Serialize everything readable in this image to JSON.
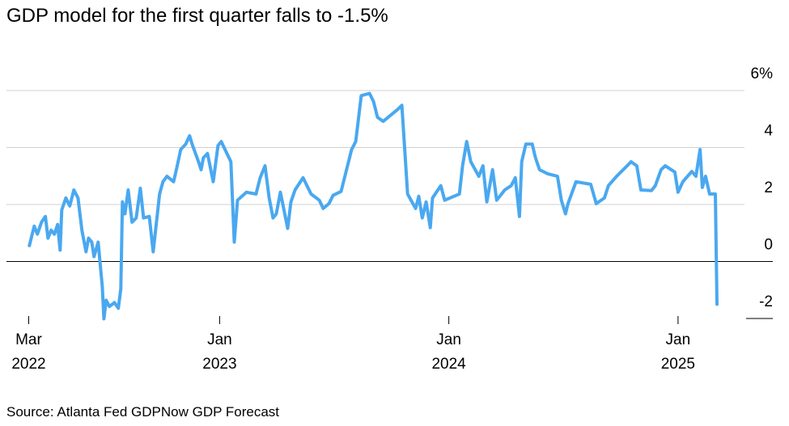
{
  "chart_data": {
    "type": "line",
    "title": "GDP model for the first quarter falls to -1.5%",
    "source": "Source: Atlanta Fed GDPNow GDP Forecast",
    "x": [
      2022.17,
      2022.191,
      2022.205,
      2022.223,
      2022.24,
      2022.251,
      2022.265,
      2022.279,
      2022.293,
      2022.304,
      2022.311,
      2022.329,
      2022.346,
      2022.364,
      2022.382,
      2022.399,
      2022.417,
      2022.428,
      2022.442,
      2022.452,
      2022.47,
      2022.488,
      2022.495,
      2022.505,
      2022.519,
      2022.541,
      2022.558,
      2022.569,
      2022.576,
      2022.587,
      2022.601,
      2022.618,
      2022.636,
      2022.654,
      2022.668,
      2022.693,
      2022.71,
      2022.738,
      2022.753,
      2022.77,
      2022.799,
      2022.813,
      2022.83,
      2022.852,
      2022.869,
      2022.88,
      2022.908,
      2022.919,
      2022.929,
      2022.947,
      2022.972,
      2022.993,
      2023.007,
      2023.049,
      2023.064,
      2023.078,
      2023.117,
      2023.159,
      2023.177,
      2023.198,
      2023.216,
      2023.233,
      2023.247,
      2023.265,
      2023.297,
      2023.311,
      2023.329,
      2023.364,
      2023.399,
      2023.435,
      2023.452,
      2023.477,
      2023.495,
      2023.53,
      2023.576,
      2023.594,
      2023.618,
      2023.654,
      2023.671,
      2023.689,
      2023.714,
      2023.777,
      2023.795,
      2023.82,
      2023.855,
      2023.869,
      2023.884,
      2023.901,
      2023.919,
      2023.929,
      2023.965,
      2023.982,
      2024.046,
      2024.06,
      2024.078,
      2024.096,
      2024.131,
      2024.149,
      2024.166,
      2024.191,
      2024.209,
      2024.244,
      2024.272,
      2024.29,
      2024.308,
      2024.318,
      2024.336,
      2024.364,
      2024.378,
      2024.396,
      2024.431,
      2024.474,
      2024.491,
      2024.509,
      2024.52,
      2024.555,
      2024.619,
      2024.643,
      2024.679,
      2024.696,
      2024.732,
      2024.778,
      2024.795,
      2024.82,
      2024.838,
      2024.884,
      2024.901,
      2024.926,
      2024.944,
      2024.986,
      2025.0,
      2025.021,
      2025.06,
      2025.078,
      2025.096,
      2025.106,
      2025.12,
      2025.138,
      2025.163,
      2025.17
    ],
    "series": [
      {
        "name": "GDPNow",
        "color": "#4aa8f0",
        "values": [
          0.56,
          1.24,
          0.96,
          1.38,
          1.58,
          0.82,
          1.1,
          0.96,
          1.3,
          0.4,
          1.81,
          2.23,
          1.95,
          2.51,
          2.23,
          1.1,
          0.34,
          0.82,
          0.68,
          0.17,
          0.68,
          -0.88,
          -2.01,
          -1.36,
          -1.58,
          -1.44,
          -1.64,
          -0.96,
          2.09,
          1.67,
          2.51,
          1.38,
          1.53,
          2.57,
          1.53,
          1.58,
          0.34,
          2.37,
          2.8,
          2.99,
          2.8,
          3.28,
          3.93,
          4.12,
          4.41,
          4.12,
          3.5,
          3.22,
          3.64,
          3.79,
          2.8,
          4.07,
          4.21,
          3.5,
          0.68,
          2.15,
          2.43,
          2.37,
          2.94,
          3.36,
          2.23,
          1.53,
          1.67,
          2.43,
          1.16,
          2.09,
          2.51,
          2.94,
          2.37,
          2.15,
          1.86,
          2.03,
          2.32,
          2.46,
          3.93,
          4.21,
          5.82,
          5.9,
          5.62,
          5.06,
          4.92,
          5.34,
          5.48,
          2.37,
          1.86,
          2.29,
          1.53,
          2.09,
          1.19,
          2.23,
          2.66,
          2.15,
          2.37,
          3.36,
          4.21,
          3.5,
          2.99,
          3.36,
          2.09,
          3.22,
          2.15,
          2.51,
          2.66,
          2.94,
          1.58,
          3.5,
          4.12,
          4.12,
          3.64,
          3.22,
          3.08,
          2.99,
          2.15,
          1.67,
          2.03,
          2.8,
          2.71,
          2.03,
          2.23,
          2.66,
          2.99,
          3.36,
          3.5,
          3.36,
          2.51,
          2.49,
          2.66,
          3.22,
          3.36,
          3.14,
          2.43,
          2.8,
          3.16,
          2.99,
          3.93,
          2.6,
          2.99,
          2.37,
          2.37,
          -1.5
        ]
      }
    ],
    "xlim": [
      2022.07,
      2025.29
    ],
    "xticks": [
      {
        "value": 2022.167,
        "label": "Mar 2022"
      },
      {
        "value": 2023.0,
        "label": "Jan 2023"
      },
      {
        "value": 2024.0,
        "label": "Jan 2024"
      },
      {
        "value": 2025.0,
        "label": "Jan 2025"
      }
    ],
    "ylim": [
      -2,
      6
    ],
    "yticks": [
      -2,
      0,
      2,
      4,
      {
        "value": 6,
        "label": "6%"
      }
    ],
    "grid": true
  }
}
